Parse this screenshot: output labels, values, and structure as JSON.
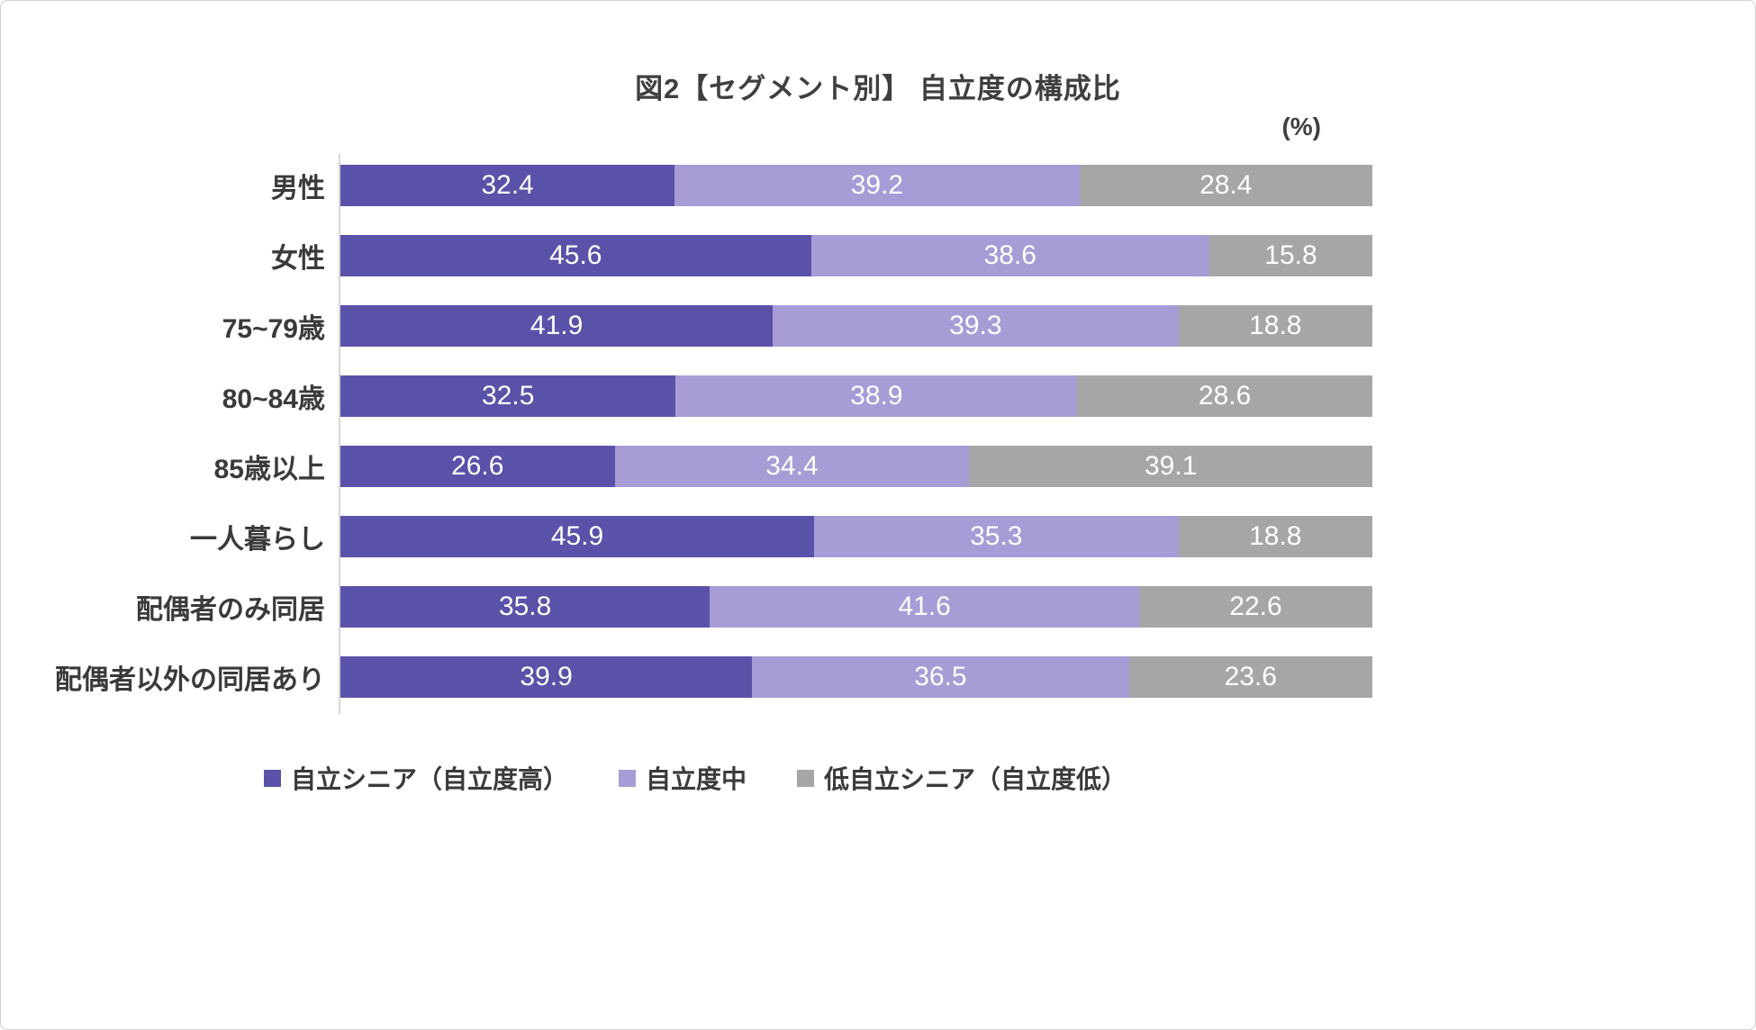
{
  "chart_data": {
    "type": "bar",
    "orientation": "horizontal",
    "stacked": true,
    "title": "図2【セグメント別】 自立度の構成比",
    "unit_label": "(%)",
    "xlim": [
      0,
      100
    ],
    "grid": false,
    "legend_position": "bottom",
    "value_labels": "inside, white",
    "categories": [
      "男性",
      "女性",
      "75~79歳",
      "80~84歳",
      "85歳以上",
      "一人暮らし",
      "配偶者のみ同居",
      "配偶者以外の同居あり"
    ],
    "series": [
      {
        "name": "自立シニア（自立度高）",
        "color": "#5a52a8",
        "values": [
          32.4,
          45.6,
          41.9,
          32.5,
          26.6,
          45.9,
          35.8,
          39.9
        ]
      },
      {
        "name": "自立度中",
        "color": "#a79cd6",
        "values": [
          39.2,
          38.6,
          39.3,
          38.9,
          34.4,
          35.3,
          41.6,
          36.5
        ]
      },
      {
        "name": "低自立シニア（自立度低）",
        "color": "#a6a6a6",
        "values": [
          28.4,
          15.8,
          18.8,
          28.6,
          39.1,
          18.8,
          22.6,
          23.6
        ]
      }
    ]
  }
}
